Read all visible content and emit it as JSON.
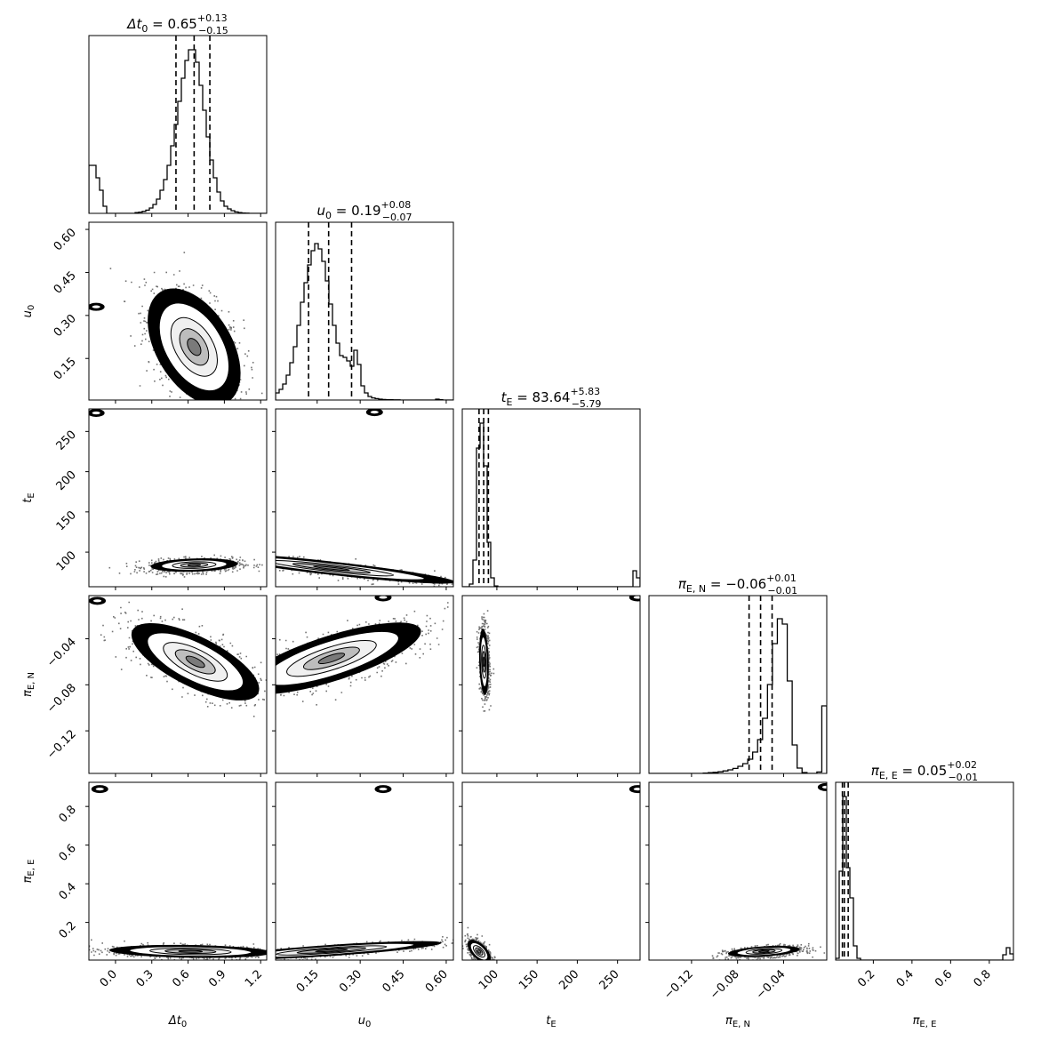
{
  "chart_data": {
    "type": "corner",
    "parameters": [
      {
        "key": "dt0",
        "tex": "Δt_0",
        "title": {
          "lhs": "Δt",
          "sub": "0",
          "eq": " = 0.65",
          "sup": "+0.13",
          "inf": "−0.15"
        }
      },
      {
        "key": "u0",
        "tex": "u_0",
        "title": {
          "lhs": "u",
          "sub": "0",
          "eq": " = 0.19",
          "sup": "+0.08",
          "inf": "−0.07"
        }
      },
      {
        "key": "tE",
        "tex": "t_E",
        "title": {
          "lhs": "t",
          "sub": "E",
          "eq": " = 83.64",
          "sup": "+5.83",
          "inf": "−5.79"
        }
      },
      {
        "key": "piEN",
        "tex": "π_E,N",
        "title": {
          "lhs": "π",
          "sub": "E, N",
          "eq": " = −0.06",
          "sup": "+0.01",
          "inf": "−0.01"
        }
      },
      {
        "key": "piEE",
        "tex": "π_E,E",
        "title": {
          "lhs": "π",
          "sub": "E, E",
          "eq": " = 0.05",
          "sup": "+0.02",
          "inf": "−0.01"
        }
      }
    ],
    "axis_labels": {
      "dt0": {
        "main": "Δt",
        "sub": "0"
      },
      "u0": {
        "main": "u",
        "sub": "0"
      },
      "tE": {
        "main": "t",
        "sub": "E"
      },
      "piEN": {
        "main": "π",
        "sub": "E, N"
      },
      "piEE": {
        "main": "π",
        "sub": "E, E"
      }
    },
    "ranges": {
      "dt0": [
        -0.22,
        1.25
      ],
      "u0": [
        0.005,
        0.625
      ],
      "tE": [
        57,
        278
      ],
      "piEN": [
        -0.157,
        -0.0025
      ],
      "piEE": [
        0.005,
        0.925
      ]
    },
    "ticks": {
      "dt0": [
        "0.0",
        "0.3",
        "0.6",
        "0.9",
        "1.2"
      ],
      "u0": [
        "0.15",
        "0.30",
        "0.45",
        "0.60"
      ],
      "tE": [
        "100",
        "150",
        "200",
        "250"
      ],
      "piEN": [
        "−0.12",
        "−0.08",
        "−0.04"
      ],
      "piEE": [
        "0.2",
        "0.4",
        "0.6",
        "0.8"
      ]
    },
    "quantiles": {
      "dt0": [
        0.5,
        0.65,
        0.78
      ],
      "u0": [
        0.12,
        0.19,
        0.27
      ],
      "tE": [
        77.85,
        83.64,
        89.47
      ],
      "piEN": [
        -0.07,
        -0.06,
        -0.05
      ],
      "piEE": [
        0.04,
        0.05,
        0.07
      ]
    },
    "histograms": {
      "dt0": {
        "bins": [
          -0.22,
          1.25
        ],
        "values": [
          0.27,
          0.27,
          0.2,
          0.13,
          0.04,
          0,
          0,
          0,
          0,
          0,
          0,
          0,
          0,
          0.004,
          0.007,
          0.011,
          0.018,
          0.03,
          0.05,
          0.08,
          0.13,
          0.19,
          0.27,
          0.38,
          0.5,
          0.63,
          0.76,
          0.86,
          0.92,
          0.92,
          0.85,
          0.72,
          0.58,
          0.43,
          0.3,
          0.2,
          0.12,
          0.07,
          0.04,
          0.025,
          0.015,
          0.008,
          0.004,
          0.002,
          0.001,
          0,
          0,
          0,
          0,
          0
        ]
      },
      "u0": {
        "bins": [
          0.005,
          0.625
        ],
        "values": [
          0.04,
          0.06,
          0.09,
          0.14,
          0.21,
          0.3,
          0.42,
          0.55,
          0.66,
          0.76,
          0.84,
          0.88,
          0.85,
          0.78,
          0.67,
          0.54,
          0.42,
          0.32,
          0.25,
          0.24,
          0.22,
          0.19,
          0.28,
          0.2,
          0.08,
          0.04,
          0.02,
          0.012,
          0.008,
          0.005,
          0.003,
          0.002,
          0.002,
          0.001,
          0.001,
          0,
          0,
          0,
          0,
          0,
          0,
          0,
          0,
          0,
          0,
          0.005,
          0.002,
          0,
          0,
          0
        ]
      },
      "tE": {
        "bins": [
          57,
          278
        ],
        "values": [
          0,
          0,
          0.015,
          0.15,
          0.78,
          0.92,
          0.68,
          0.25,
          0.05,
          0.004,
          0,
          0,
          0,
          0,
          0,
          0,
          0,
          0,
          0,
          0,
          0,
          0,
          0,
          0,
          0,
          0,
          0,
          0,
          0,
          0,
          0,
          0,
          0,
          0,
          0,
          0,
          0,
          0,
          0,
          0,
          0,
          0,
          0,
          0,
          0,
          0,
          0,
          0,
          0.09,
          0.05
        ]
      },
      "piEN": {
        "bins": [
          -0.157,
          -0.0025
        ],
        "values": [
          0,
          0,
          0,
          0,
          0,
          0,
          0,
          0,
          0,
          0,
          0,
          0.002,
          0.004,
          0.006,
          0.009,
          0.014,
          0.02,
          0.028,
          0.04,
          0.055,
          0.08,
          0.12,
          0.19,
          0.31,
          0.5,
          0.73,
          0.87,
          0.84,
          0.52,
          0.16,
          0.03,
          0.005,
          0,
          0,
          0.008,
          0.38
        ]
      },
      "piEE": {
        "bins": [
          0.005,
          0.925
        ],
        "values": [
          0.01,
          0.5,
          0.92,
          0.52,
          0.35,
          0.08,
          0.01,
          0,
          0,
          0,
          0,
          0,
          0,
          0,
          0,
          0,
          0,
          0,
          0,
          0,
          0,
          0,
          0,
          0,
          0,
          0,
          0,
          0,
          0,
          0,
          0,
          0,
          0,
          0,
          0,
          0,
          0,
          0,
          0,
          0,
          0,
          0,
          0,
          0,
          0,
          0,
          0,
          0.03,
          0.07,
          0.035
        ]
      }
    },
    "joint": {
      "u0_vs_dt0": {
        "mean": [
          0.65,
          0.19
        ],
        "sd": [
          0.16,
          0.085
        ],
        "rho": -0.45,
        "side": [
          [
            -0.16,
            0.33
          ]
        ]
      },
      "tE_vs_dt0": {
        "mean": [
          0.65,
          84
        ],
        "sd": [
          0.15,
          3.5
        ],
        "rho": 0.2,
        "side": [
          [
            -0.16,
            273
          ]
        ]
      },
      "tE_vs_u0": {
        "mean": [
          0.2,
          80
        ],
        "sd": [
          0.18,
          8
        ],
        "rho": -0.9,
        "side": [
          [
            0.35,
            274
          ]
        ]
      },
      "piEN_vs_dt0": {
        "mean": [
          0.66,
          -0.06
        ],
        "sd": [
          0.22,
          0.014
        ],
        "rho": -0.7,
        "side": [
          [
            -0.15,
            -0.007
          ]
        ]
      },
      "piEN_vs_u0": {
        "mean": [
          0.2,
          -0.057
        ],
        "sd": [
          0.13,
          0.013
        ],
        "rho": 0.75,
        "side": [
          [
            0.38,
            -0.004
          ]
        ]
      },
      "piEN_vs_tE": {
        "mean": [
          84,
          -0.06
        ],
        "sd": [
          2.5,
          0.012
        ],
        "rho": -0.2,
        "side": [
          [
            275,
            -0.004
          ]
        ]
      },
      "piEE_vs_dt0": {
        "mean": [
          0.62,
          0.05
        ],
        "sd": [
          0.28,
          0.014
        ],
        "rho": -0.2,
        "side": [
          [
            -0.13,
            0.89
          ]
        ]
      },
      "piEE_vs_u0": {
        "mean": [
          0.2,
          0.055
        ],
        "sd": [
          0.16,
          0.02
        ],
        "rho": 0.8,
        "side": [
          [
            0.38,
            0.89
          ]
        ]
      },
      "piEE_vs_tE": {
        "mean": [
          78,
          0.05
        ],
        "sd": [
          6,
          0.025
        ],
        "rho": -0.6,
        "side": [
          [
            275,
            0.89
          ]
        ]
      },
      "piEE_vs_piEN": {
        "mean": [
          -0.057,
          0.05
        ],
        "sd": [
          0.013,
          0.012
        ],
        "rho": 0.4,
        "side": [
          [
            -0.003,
            0.9
          ]
        ]
      }
    },
    "grid": false,
    "legend": "none"
  }
}
